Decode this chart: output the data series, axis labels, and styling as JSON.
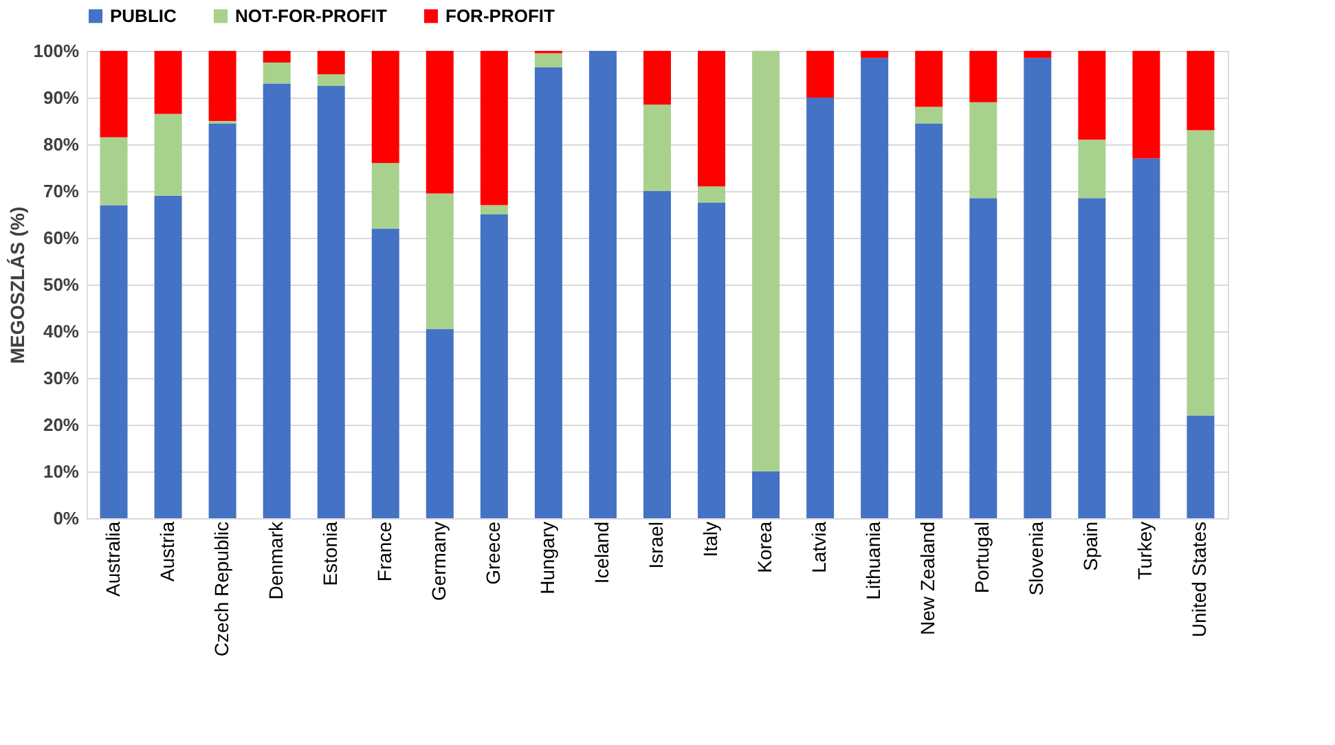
{
  "chart_data": {
    "type": "bar",
    "stacked": true,
    "ylabel": "MEGOSZLÁS (%)",
    "legend": "top",
    "grid": "y",
    "categories": [
      "Australia",
      "Austria",
      "Czech Republic",
      "Denmark",
      "Estonia",
      "France",
      "Germany",
      "Greece",
      "Hungary",
      "Iceland",
      "Israel",
      "Italy",
      "Korea",
      "Latvia",
      "Lithuania",
      "New Zealand",
      "Portugal",
      "Slovenia",
      "Spain",
      "Turkey",
      "United States"
    ],
    "ylim": [
      0,
      100
    ],
    "yticks": [
      {
        "value": 0,
        "label": "0%"
      },
      {
        "value": 10,
        "label": "10%"
      },
      {
        "value": 20,
        "label": "20%"
      },
      {
        "value": 30,
        "label": "30%"
      },
      {
        "value": 40,
        "label": "40%"
      },
      {
        "value": 50,
        "label": "50%"
      },
      {
        "value": 60,
        "label": "60%"
      },
      {
        "value": 70,
        "label": "70%"
      },
      {
        "value": 80,
        "label": "80%"
      },
      {
        "value": 90,
        "label": "90%"
      },
      {
        "value": 100,
        "label": "100%"
      }
    ],
    "series": [
      {
        "name": "PUBLIC",
        "color": "#4472c4",
        "values": [
          67,
          69,
          84.5,
          93,
          92.5,
          62,
          40.5,
          65,
          96.5,
          100,
          70,
          67.5,
          10,
          90,
          98.5,
          84.5,
          68.5,
          98.5,
          68.5,
          77,
          22
        ]
      },
      {
        "name": "NOT-FOR-PROFIT",
        "color": "#a9d18e",
        "values": [
          14.5,
          17.5,
          0.5,
          4.5,
          2.5,
          14,
          29,
          2,
          3,
          0,
          18.5,
          3.5,
          90,
          0,
          0,
          3.5,
          20.5,
          0,
          12.5,
          0,
          61
        ]
      },
      {
        "name": "FOR-PROFIT",
        "color": "#ff0000",
        "values": [
          18.5,
          13.5,
          15,
          2.5,
          5,
          24,
          30.5,
          33,
          0.5,
          0,
          11.5,
          29,
          0,
          10,
          1.5,
          12,
          11,
          1.5,
          19,
          23,
          17
        ]
      }
    ]
  }
}
